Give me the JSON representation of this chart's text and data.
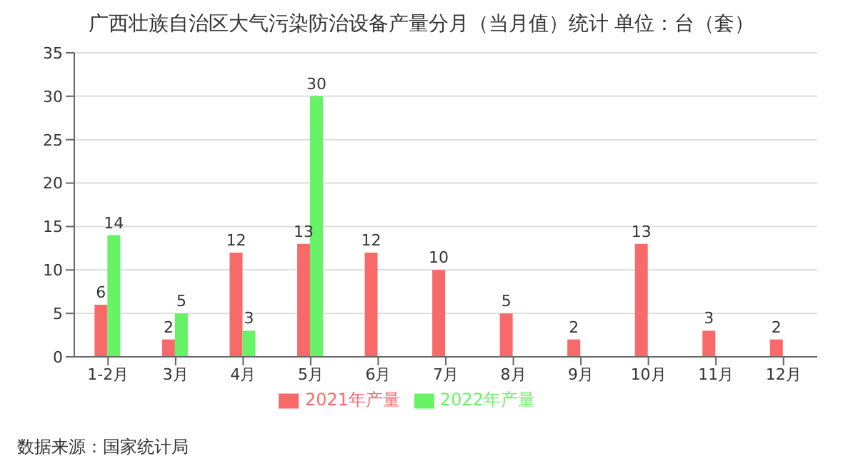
{
  "chart_data": {
    "type": "bar",
    "title": "广西壮族自治区大气污染防治设备产量分月（当月值）统计 单位：台（套）",
    "categories": [
      "1-2月",
      "3月",
      "4月",
      "5月",
      "6月",
      "7月",
      "8月",
      "9月",
      "10月",
      "11月",
      "12月"
    ],
    "series": [
      {
        "name": "2021年产量",
        "color": "#f86a6a",
        "values": [
          6,
          2,
          12,
          13,
          12,
          10,
          5,
          2,
          13,
          3,
          2
        ]
      },
      {
        "name": "2022年产量",
        "color": "#66f466",
        "values": [
          14,
          5,
          3,
          30,
          null,
          null,
          null,
          null,
          null,
          null,
          null
        ]
      }
    ],
    "ylim": [
      0,
      35
    ],
    "yticks": [
      0,
      5,
      10,
      15,
      20,
      25,
      30,
      35
    ],
    "grid": "y",
    "legend": "bottom",
    "data_labels": true,
    "annotations": [
      "数据来源：国家统计局"
    ]
  }
}
